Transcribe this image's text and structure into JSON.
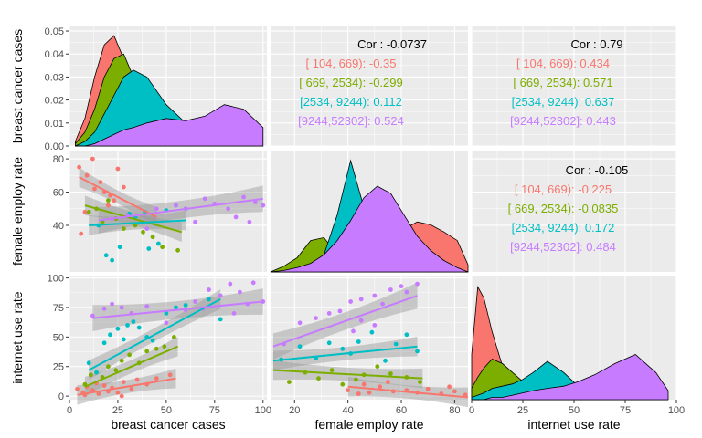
{
  "chart_data": {
    "type": "scatter",
    "groups": [
      "[ 104,  669)",
      "[ 669, 2534)",
      "[2534, 9244)",
      "[9244,52302]"
    ],
    "colors": [
      "#F8766D",
      "#7CAE00",
      "#00BFC4",
      "#C77CFF"
    ],
    "variables": [
      "breast cancer cases",
      "female employ rate",
      "internet use rate"
    ],
    "axis_labels": {
      "bottom": [
        "breast cancer cases",
        "female employ rate",
        "internet use rate"
      ],
      "left": [
        "breast cancer cases",
        "female employ rate",
        "internet use rate"
      ]
    },
    "ticks": {
      "x": [
        [
          0,
          25,
          50,
          75,
          100
        ],
        [
          20,
          40,
          60,
          80
        ],
        [
          0,
          25,
          50,
          75,
          100
        ]
      ],
      "y": [
        [
          "0.00",
          "0.01",
          "0.02",
          "0.03",
          "0.04",
          "0.05"
        ],
        [
          "40",
          "60",
          "80"
        ],
        [
          "0",
          "25",
          "50",
          "75",
          "100"
        ]
      ]
    },
    "ranges": {
      "x1": [
        0,
        102
      ],
      "x2": [
        11,
        85
      ],
      "x3": [
        0,
        100
      ],
      "d1": [
        0,
        0.052
      ],
      "y2": [
        12,
        85
      ],
      "y3": [
        -3,
        102
      ],
      "d2": [
        0,
        0.085
      ],
      "d3": [
        0,
        0.055
      ]
    },
    "correlations": [
      {
        "title": "Cor : -0.0737",
        "lines": [
          "[ 104,  669): -0.35",
          "[ 669, 2534): -0.299",
          "[2534, 9244): 0.112",
          "[9244,52302]: 0.524"
        ]
      },
      {
        "title": "Cor : 0.79",
        "lines": [
          "[ 104,  669): 0.434",
          "[ 669, 2534): 0.571",
          "[2534, 9244): 0.637",
          "[9244,52302]: 0.443"
        ]
      },
      {
        "title": "Cor : -0.105",
        "lines": [
          "[ 104,  669): -0.225",
          "[ 669, 2534): -0.0835",
          "[2534, 9244): 0.172",
          "[9244,52302]: 0.484"
        ]
      }
    ],
    "density_breast_cancer": {
      "x": [
        3,
        8,
        13,
        18,
        23,
        28,
        33,
        40,
        50,
        60,
        70,
        80,
        90,
        100
      ],
      "series": [
        [
          0.002,
          0.012,
          0.03,
          0.044,
          0.048,
          0.038,
          0.022,
          0.008,
          0.002,
          0.0,
          0.0,
          0.0,
          0.0,
          0.0
        ],
        [
          0.001,
          0.006,
          0.016,
          0.03,
          0.038,
          0.04,
          0.03,
          0.018,
          0.008,
          0.003,
          0.001,
          0.0,
          0.0,
          0.0
        ],
        [
          0.0,
          0.002,
          0.006,
          0.014,
          0.022,
          0.03,
          0.033,
          0.03,
          0.018,
          0.01,
          0.004,
          0.001,
          0.0,
          0.0
        ],
        [
          0.0,
          0.0,
          0.001,
          0.003,
          0.005,
          0.007,
          0.008,
          0.01,
          0.012,
          0.011,
          0.013,
          0.018,
          0.016,
          0.008
        ]
      ]
    },
    "density_female_employ": {
      "x": [
        11,
        16,
        21,
        26,
        31,
        36,
        41,
        46,
        51,
        56,
        61,
        66,
        71,
        76,
        81,
        85
      ],
      "series": [
        [
          0.0,
          0.002,
          0.004,
          0.008,
          0.014,
          0.016,
          0.016,
          0.014,
          0.015,
          0.02,
          0.03,
          0.035,
          0.033,
          0.028,
          0.022,
          0.005
        ],
        [
          0.0,
          0.004,
          0.01,
          0.022,
          0.024,
          0.012,
          0.014,
          0.016,
          0.018,
          0.016,
          0.012,
          0.008,
          0.006,
          0.004,
          0.002,
          0.0
        ],
        [
          0.0,
          0.0,
          0.001,
          0.004,
          0.012,
          0.04,
          0.078,
          0.045,
          0.03,
          0.018,
          0.008,
          0.003,
          0.001,
          0.0,
          0.0,
          0.0
        ],
        [
          0.0,
          0.001,
          0.003,
          0.006,
          0.012,
          0.022,
          0.036,
          0.052,
          0.06,
          0.055,
          0.04,
          0.025,
          0.015,
          0.008,
          0.003,
          0.0
        ]
      ]
    },
    "density_internet_use": {
      "x": [
        0,
        3,
        6,
        10,
        15,
        20,
        25,
        30,
        37,
        45,
        52,
        60,
        70,
        80,
        90,
        96
      ],
      "series": [
        [
          0.02,
          0.05,
          0.045,
          0.03,
          0.015,
          0.008,
          0.004,
          0.002,
          0.001,
          0.0,
          0.0,
          0.0,
          0.0,
          0.0,
          0.0,
          0.0
        ],
        [
          0.005,
          0.01,
          0.014,
          0.018,
          0.016,
          0.012,
          0.008,
          0.005,
          0.003,
          0.002,
          0.001,
          0.0,
          0.0,
          0.0,
          0.0,
          0.0
        ],
        [
          0.001,
          0.002,
          0.003,
          0.005,
          0.006,
          0.007,
          0.009,
          0.012,
          0.017,
          0.012,
          0.006,
          0.003,
          0.001,
          0.0,
          0.0,
          0.0
        ],
        [
          0.0,
          0.0,
          0.0,
          0.001,
          0.001,
          0.002,
          0.003,
          0.004,
          0.005,
          0.006,
          0.008,
          0.011,
          0.016,
          0.02,
          0.012,
          0.004
        ]
      ]
    },
    "scatter_employ_vs_cancer": [
      [
        [
          5,
          75
        ],
        [
          9,
          70
        ],
        [
          13,
          62
        ],
        [
          16,
          66
        ],
        [
          18,
          60
        ],
        [
          21,
          58
        ],
        [
          23,
          55
        ],
        [
          12,
          80
        ],
        [
          8,
          48
        ],
        [
          20,
          52
        ],
        [
          25,
          74
        ],
        [
          28,
          63
        ],
        [
          6,
          35
        ]
      ],
      [
        [
          10,
          48
        ],
        [
          14,
          50
        ],
        [
          17,
          42
        ],
        [
          24,
          44
        ],
        [
          30,
          46
        ],
        [
          34,
          40
        ],
        [
          38,
          36
        ],
        [
          43,
          33
        ],
        [
          48,
          27
        ],
        [
          56,
          25
        ],
        [
          20,
          55
        ],
        [
          28,
          38
        ]
      ],
      [
        [
          15,
          40
        ],
        [
          19,
          22
        ],
        [
          22,
          19
        ],
        [
          26,
          27
        ],
        [
          31,
          47
        ],
        [
          34,
          45
        ],
        [
          39,
          48
        ],
        [
          41,
          26
        ],
        [
          46,
          29
        ],
        [
          50,
          49
        ],
        [
          55,
          52
        ],
        [
          60,
          50
        ]
      ],
      [
        [
          22,
          44
        ],
        [
          30,
          46
        ],
        [
          45,
          50
        ],
        [
          55,
          52
        ],
        [
          60,
          50
        ],
        [
          70,
          56
        ],
        [
          75,
          53
        ],
        [
          82,
          50
        ],
        [
          86,
          45
        ],
        [
          90,
          57
        ],
        [
          93,
          42
        ],
        [
          96,
          54
        ],
        [
          100,
          52
        ],
        [
          65,
          42
        ],
        [
          40,
          38
        ]
      ]
    ],
    "scatter_internet_vs_cancer": [
      [
        [
          4,
          6
        ],
        [
          7,
          3
        ],
        [
          9,
          8
        ],
        [
          12,
          5
        ],
        [
          15,
          2
        ],
        [
          18,
          9
        ],
        [
          20,
          4
        ],
        [
          22,
          7
        ],
        [
          25,
          3
        ],
        [
          28,
          12
        ],
        [
          32,
          6
        ],
        [
          35,
          14
        ],
        [
          40,
          10
        ],
        [
          45,
          15
        ],
        [
          52,
          18
        ],
        [
          8,
          1
        ],
        [
          14,
          11
        ],
        [
          27,
          0
        ]
      ],
      [
        [
          8,
          10
        ],
        [
          11,
          18
        ],
        [
          14,
          20
        ],
        [
          17,
          16
        ],
        [
          20,
          25
        ],
        [
          24,
          22
        ],
        [
          27,
          30
        ],
        [
          31,
          35
        ],
        [
          36,
          28
        ],
        [
          40,
          38
        ],
        [
          45,
          40
        ],
        [
          49,
          42
        ],
        [
          54,
          50
        ]
      ],
      [
        [
          10,
          28
        ],
        [
          14,
          20
        ],
        [
          18,
          45
        ],
        [
          21,
          52
        ],
        [
          25,
          57
        ],
        [
          28,
          48
        ],
        [
          30,
          60
        ],
        [
          33,
          63
        ],
        [
          36,
          58
        ],
        [
          40,
          50
        ],
        [
          43,
          47
        ],
        [
          50,
          70
        ],
        [
          55,
          75
        ],
        [
          60,
          77
        ],
        [
          72,
          82
        ],
        [
          78,
          65
        ]
      ],
      [
        [
          12,
          68
        ],
        [
          18,
          74
        ],
        [
          22,
          78
        ],
        [
          27,
          75
        ],
        [
          32,
          70
        ],
        [
          40,
          76
        ],
        [
          50,
          62
        ],
        [
          60,
          73
        ],
        [
          65,
          80
        ],
        [
          72,
          90
        ],
        [
          78,
          85
        ],
        [
          83,
          95
        ],
        [
          88,
          88
        ],
        [
          92,
          78
        ],
        [
          95,
          96
        ],
        [
          100,
          80
        ],
        [
          69,
          74
        ],
        [
          85,
          70
        ]
      ]
    ],
    "scatter_internet_vs_employ": [
      [
        [
          40,
          5
        ],
        [
          44,
          2
        ],
        [
          48,
          3
        ],
        [
          52,
          8
        ],
        [
          57,
          4
        ],
        [
          62,
          5
        ],
        [
          66,
          3
        ],
        [
          70,
          6
        ],
        [
          75,
          2
        ],
        [
          80,
          4
        ],
        [
          84,
          1
        ],
        [
          55,
          12
        ],
        [
          46,
          10
        ],
        [
          78,
          8
        ]
      ],
      [
        [
          18,
          12
        ],
        [
          24,
          20
        ],
        [
          29,
          15
        ],
        [
          34,
          22
        ],
        [
          38,
          10
        ],
        [
          43,
          14
        ],
        [
          46,
          18
        ],
        [
          51,
          25
        ],
        [
          56,
          19
        ],
        [
          62,
          16
        ],
        [
          67,
          12
        ]
      ],
      [
        [
          15,
          31
        ],
        [
          22,
          42
        ],
        [
          28,
          32
        ],
        [
          33,
          45
        ],
        [
          38,
          40
        ],
        [
          41,
          36
        ],
        [
          44,
          46
        ],
        [
          49,
          54
        ],
        [
          54,
          30
        ],
        [
          58,
          44
        ],
        [
          62,
          52
        ],
        [
          66,
          38
        ]
      ],
      [
        [
          16,
          44
        ],
        [
          22,
          62
        ],
        [
          28,
          66
        ],
        [
          33,
          70
        ],
        [
          37,
          72
        ],
        [
          41,
          80
        ],
        [
          45,
          82
        ],
        [
          50,
          85
        ],
        [
          53,
          78
        ],
        [
          56,
          90
        ],
        [
          60,
          93
        ],
        [
          62,
          88
        ],
        [
          66,
          95
        ],
        [
          45,
          64
        ],
        [
          50,
          60
        ],
        [
          42,
          55
        ]
      ]
    ],
    "fits": {
      "employ_vs_cancer": [
        [
          [
            5,
            69
          ],
          [
            45,
            45
          ]
        ],
        [
          [
            8,
            52
          ],
          [
            58,
            36
          ]
        ],
        [
          [
            10,
            40
          ],
          [
            60,
            43
          ]
        ],
        [
          [
            15,
            43
          ],
          [
            100,
            56
          ]
        ]
      ],
      "internet_vs_cancer": [
        [
          [
            4,
            1
          ],
          [
            55,
            15
          ]
        ],
        [
          [
            8,
            8
          ],
          [
            56,
            42
          ]
        ],
        [
          [
            10,
            22
          ],
          [
            78,
            82
          ]
        ],
        [
          [
            12,
            66
          ],
          [
            100,
            80
          ]
        ]
      ],
      "internet_vs_employ": [
        [
          [
            40,
            8
          ],
          [
            85,
            -1
          ]
        ],
        [
          [
            12,
            22
          ],
          [
            68,
            15
          ]
        ],
        [
          [
            12,
            30
          ],
          [
            66,
            42
          ]
        ],
        [
          [
            12,
            42
          ],
          [
            66,
            85
          ]
        ]
      ]
    }
  }
}
